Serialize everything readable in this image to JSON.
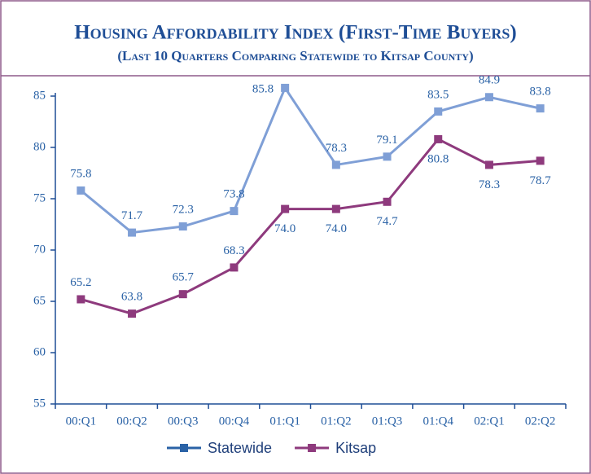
{
  "chart_data": {
    "type": "line",
    "title": "Housing Affordability Index (First-Time Buyers)",
    "subtitle": "(Last 10 Quarters Comparing Statewide to Kitsap County)",
    "categories": [
      "00:Q1",
      "00:Q2",
      "00:Q3",
      "00:Q4",
      "01:Q1",
      "01:Q2",
      "01:Q3",
      "01:Q4",
      "02:Q1",
      "02:Q2"
    ],
    "series": [
      {
        "name": "Statewide",
        "color": "#7f9fd6",
        "legend_color": "#2a62a6",
        "values": [
          75.8,
          71.7,
          72.3,
          73.8,
          85.8,
          78.3,
          79.1,
          83.5,
          84.9,
          83.8
        ]
      },
      {
        "name": "Kitsap",
        "color": "#8e3a7d",
        "values": [
          65.2,
          63.8,
          65.7,
          68.3,
          74,
          74,
          74.7,
          80.8,
          78.3,
          78.7
        ],
        "value_labels": [
          "65.2",
          "63.8",
          "65.7",
          "68.3",
          "74.0",
          "74.0",
          "74.7",
          "80.8",
          "78.3",
          "78.7"
        ]
      }
    ],
    "ylim": [
      55,
      85
    ],
    "yticks": [
      55,
      60,
      65,
      70,
      75,
      80,
      85
    ],
    "legend": "bottom"
  }
}
